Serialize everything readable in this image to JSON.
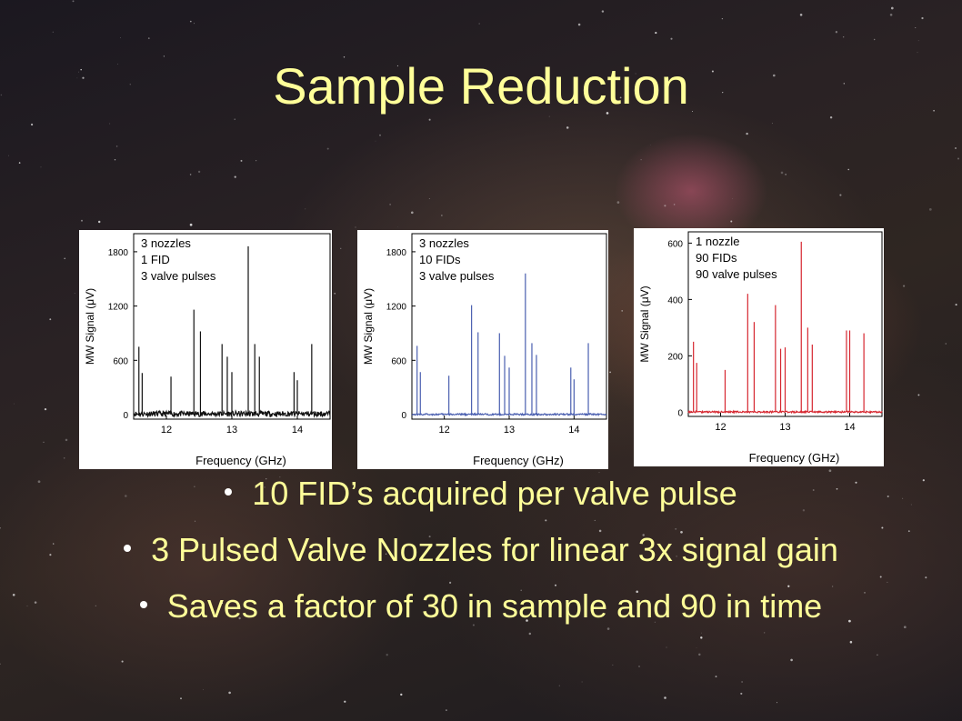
{
  "slide": {
    "title": "Sample Reduction",
    "bullets": [
      "10 FID’s acquired per valve pulse",
      "3 Pulsed Valve Nozzles for linear 3x signal gain",
      "Saves a factor of 30 in sample and 90 in time"
    ]
  },
  "chart_data": [
    {
      "type": "line",
      "color": "#111111",
      "annotation": [
        "3 nozzles",
        "1 FID",
        "3 valve pulses"
      ],
      "xlabel": "Frequency (GHz)",
      "ylabel": "MW Signal (μV)",
      "xlim": [
        11.5,
        14.5
      ],
      "ylim": [
        -50,
        2000
      ],
      "xticks": [
        12,
        13,
        14
      ],
      "yticks": [
        0,
        600,
        1200,
        1800
      ],
      "noise_level": 60,
      "peaks": [
        {
          "x": 11.58,
          "y": 750
        },
        {
          "x": 11.63,
          "y": 460
        },
        {
          "x": 12.07,
          "y": 420
        },
        {
          "x": 12.42,
          "y": 1160
        },
        {
          "x": 12.52,
          "y": 920
        },
        {
          "x": 12.85,
          "y": 780
        },
        {
          "x": 12.93,
          "y": 640
        },
        {
          "x": 13.0,
          "y": 470
        },
        {
          "x": 13.25,
          "y": 1860
        },
        {
          "x": 13.35,
          "y": 780
        },
        {
          "x": 13.42,
          "y": 640
        },
        {
          "x": 13.95,
          "y": 470
        },
        {
          "x": 14.0,
          "y": 380
        },
        {
          "x": 14.22,
          "y": 780
        }
      ]
    },
    {
      "type": "line",
      "color": "#4a5fb0",
      "annotation": [
        "3 nozzles",
        "10 FIDs",
        "3 valve pulses"
      ],
      "xlabel": "Frequency (GHz)",
      "ylabel": "MW Signal (μV)",
      "xlim": [
        11.5,
        14.5
      ],
      "ylim": [
        -50,
        2000
      ],
      "xticks": [
        12,
        13,
        14
      ],
      "yticks": [
        0,
        600,
        1200,
        1800
      ],
      "noise_level": 18,
      "peaks": [
        {
          "x": 11.58,
          "y": 760
        },
        {
          "x": 11.63,
          "y": 470
        },
        {
          "x": 12.07,
          "y": 430
        },
        {
          "x": 12.42,
          "y": 1210
        },
        {
          "x": 12.52,
          "y": 910
        },
        {
          "x": 12.85,
          "y": 900
        },
        {
          "x": 12.93,
          "y": 650
        },
        {
          "x": 13.0,
          "y": 520
        },
        {
          "x": 13.25,
          "y": 1560
        },
        {
          "x": 13.35,
          "y": 790
        },
        {
          "x": 13.42,
          "y": 660
        },
        {
          "x": 13.95,
          "y": 520
        },
        {
          "x": 14.0,
          "y": 390
        },
        {
          "x": 14.22,
          "y": 790
        }
      ]
    },
    {
      "type": "line",
      "color": "#d6262f",
      "annotation": [
        "1 nozzle",
        "90 FIDs",
        "90 valve pulses"
      ],
      "xlabel": "Frequency (GHz)",
      "ylabel": "MW Signal (μV)",
      "xlim": [
        11.5,
        14.5
      ],
      "ylim": [
        -15,
        640
      ],
      "xticks": [
        12,
        13,
        14
      ],
      "yticks": [
        0,
        200,
        400,
        600
      ],
      "noise_level": 6,
      "peaks": [
        {
          "x": 11.58,
          "y": 250
        },
        {
          "x": 11.63,
          "y": 175
        },
        {
          "x": 12.07,
          "y": 150
        },
        {
          "x": 12.42,
          "y": 420
        },
        {
          "x": 12.52,
          "y": 320
        },
        {
          "x": 12.85,
          "y": 380
        },
        {
          "x": 12.93,
          "y": 225
        },
        {
          "x": 13.0,
          "y": 230
        },
        {
          "x": 13.25,
          "y": 605
        },
        {
          "x": 13.35,
          "y": 300
        },
        {
          "x": 13.42,
          "y": 240
        },
        {
          "x": 13.95,
          "y": 290
        },
        {
          "x": 14.0,
          "y": 290
        },
        {
          "x": 14.22,
          "y": 280
        }
      ]
    }
  ]
}
